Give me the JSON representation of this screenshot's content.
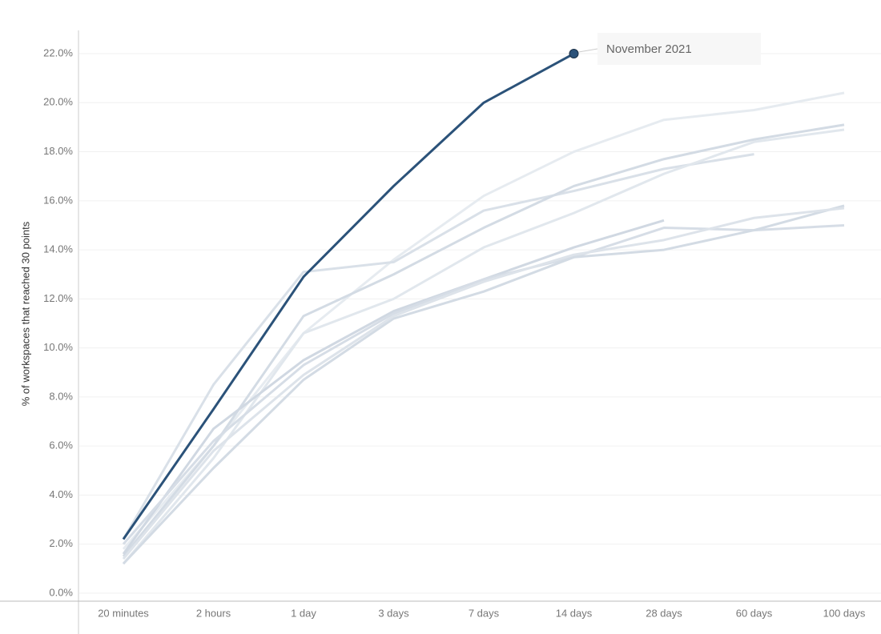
{
  "chart_data": {
    "type": "line",
    "y_label": "% of workspaces that reached 30 points",
    "categories": [
      "20 minutes",
      "2 hours",
      "1 day",
      "3 days",
      "7 days",
      "14 days",
      "28 days",
      "60 days",
      "100 days"
    ],
    "ylim": [
      0,
      23
    ],
    "yticks": [
      {
        "value": 0,
        "label": "0.0%"
      },
      {
        "value": 2,
        "label": "2.0%"
      },
      {
        "value": 4,
        "label": "4.0%"
      },
      {
        "value": 6,
        "label": "6.0%"
      },
      {
        "value": 8,
        "label": "8.0%"
      },
      {
        "value": 10,
        "label": "10.0%"
      },
      {
        "value": 12,
        "label": "12.0%"
      },
      {
        "value": 14,
        "label": "14.0%"
      },
      {
        "value": 16,
        "label": "16.0%"
      },
      {
        "value": 18,
        "label": "18.0%"
      },
      {
        "value": 20,
        "label": "20.0%"
      },
      {
        "value": 22,
        "label": "22.0%"
      }
    ],
    "grid": true,
    "series": [
      {
        "color": "#e6ebf0",
        "values": [
          1.8,
          6.0,
          10.6,
          13.6,
          16.2,
          18.0,
          19.3,
          19.7,
          20.4
        ]
      },
      {
        "color": "#d9e0e8",
        "values": [
          2.2,
          8.5,
          13.1,
          13.5,
          15.6,
          16.4,
          17.3,
          17.9,
          null
        ]
      },
      {
        "color": "#d3dbe4",
        "values": [
          1.5,
          6.0,
          11.3,
          13.0,
          14.9,
          16.6,
          17.7,
          18.5,
          19.1
        ]
      },
      {
        "color": "#e1e7ed",
        "values": [
          1.2,
          5.5,
          10.6,
          12.0,
          14.1,
          15.5,
          17.1,
          18.4,
          18.9
        ]
      },
      {
        "color": "#d0d8e2",
        "values": [
          1.6,
          6.7,
          9.5,
          11.5,
          12.8,
          14.1,
          15.2,
          null,
          null
        ]
      },
      {
        "color": "#d6dde6",
        "values": [
          2.0,
          6.2,
          9.3,
          11.4,
          12.8,
          13.7,
          14.9,
          14.8,
          15.0
        ]
      },
      {
        "color": "#d3dbe4",
        "values": [
          1.2,
          5.1,
          8.7,
          11.2,
          12.3,
          13.7,
          14.0,
          14.8,
          15.8
        ]
      },
      {
        "color": "#dde3ea",
        "values": [
          1.4,
          5.8,
          8.9,
          11.3,
          12.7,
          13.8,
          14.4,
          15.3,
          15.7
        ]
      },
      {
        "name": "November 2021",
        "color": "#2b5279",
        "values": [
          2.2,
          7.5,
          12.9,
          16.6,
          20.0,
          22.0,
          null,
          null,
          null
        ]
      }
    ]
  }
}
